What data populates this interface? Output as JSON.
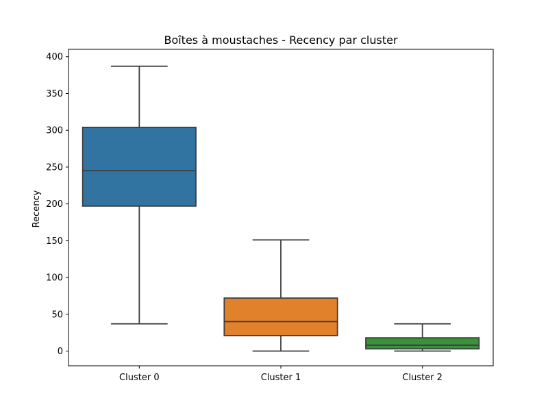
{
  "chart_data": {
    "type": "box",
    "title": "Boîtes à moustaches - Recency par cluster",
    "xlabel": "",
    "ylabel": "Recency",
    "ylim": [
      -20,
      410
    ],
    "yticks": [
      "0",
      "50",
      "100",
      "150",
      "200",
      "250",
      "300",
      "350",
      "400"
    ],
    "grid": false,
    "categories": [
      "Cluster 0",
      "Cluster 1",
      "Cluster 2"
    ],
    "boxes": [
      {
        "category": "Cluster 0",
        "whisker_low": 37,
        "q1": 197,
        "median": 245,
        "q3": 304,
        "whisker_high": 387,
        "color": "#3274a1"
      },
      {
        "category": "Cluster 1",
        "whisker_low": 0,
        "q1": 21,
        "median": 40,
        "q3": 72,
        "whisker_high": 151,
        "color": "#e1812c"
      },
      {
        "category": "Cluster 2",
        "whisker_low": 0,
        "q1": 3,
        "median": 8,
        "q3": 18,
        "whisker_high": 37,
        "color": "#3a923a"
      }
    ],
    "line_color": "#3d3d3d"
  }
}
